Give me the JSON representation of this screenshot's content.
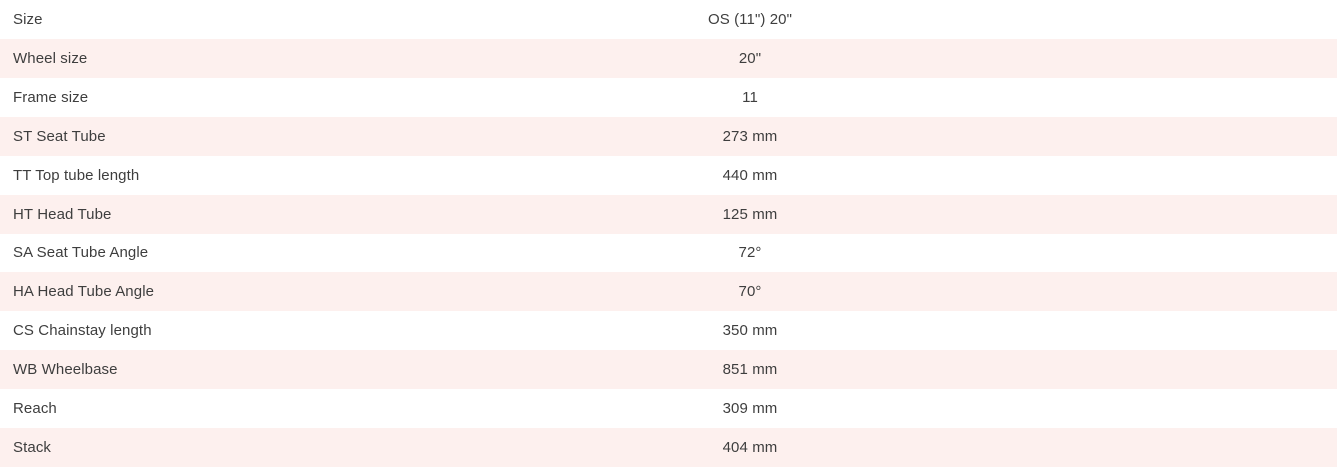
{
  "table": {
    "name": "bike-geometry-specs",
    "columns": [
      "parameter",
      "size-value"
    ],
    "size_header": "OS (11\") 20\"",
    "rows": [
      {
        "label": "Size",
        "value": "OS (11\") 20\""
      },
      {
        "label": "Wheel size",
        "value": "20\""
      },
      {
        "label": "Frame size",
        "value": "11"
      },
      {
        "label": "ST Seat Tube",
        "value": "273 mm"
      },
      {
        "label": "TT Top tube length",
        "value": "440 mm"
      },
      {
        "label": "HT Head Tube",
        "value": "125 mm"
      },
      {
        "label": "SA Seat Tube Angle",
        "value": "72°"
      },
      {
        "label": "HA Head Tube Angle",
        "value": "70°"
      },
      {
        "label": "CS Chainstay length",
        "value": "350 mm"
      },
      {
        "label": "WB Wheelbase",
        "value": "851 mm"
      },
      {
        "label": "Reach",
        "value": "309 mm"
      },
      {
        "label": "Stack",
        "value": "404 mm"
      }
    ],
    "colors": {
      "stripe_bg": "#fdf0ee",
      "row_bg": "#ffffff",
      "text": "#3e3e3e"
    }
  }
}
